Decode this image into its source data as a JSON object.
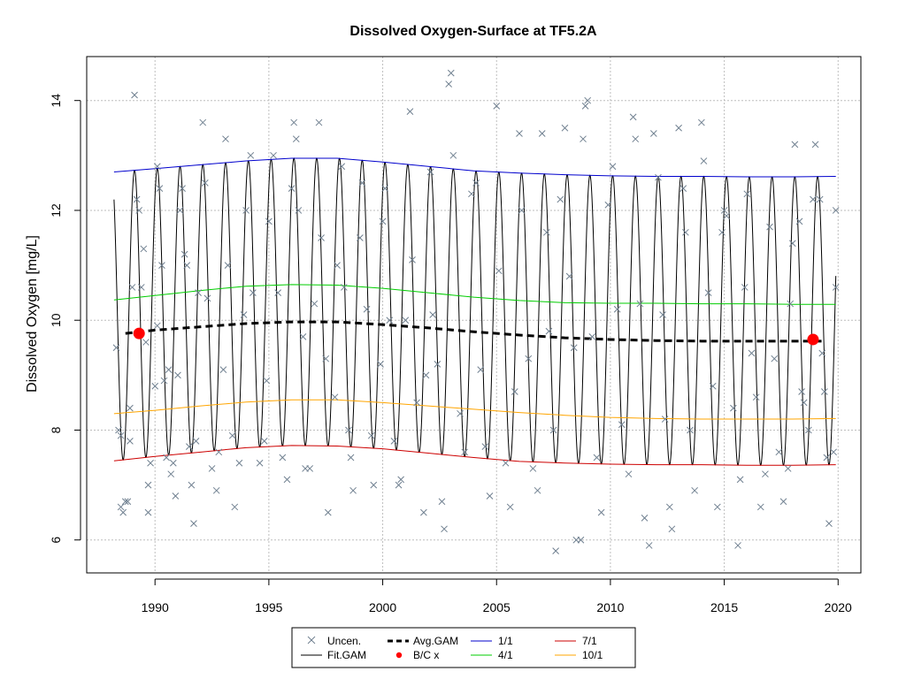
{
  "chart_data": {
    "type": "line",
    "title": "Dissolved Oxygen-Surface at TF5.2A",
    "xlabel": "",
    "ylabel": "Dissolved Oxygen [mg/L]",
    "xlim": [
      1987.0,
      2021.0
    ],
    "ylim": [
      5.4,
      14.8
    ],
    "x_ticks": [
      1990,
      1995,
      2000,
      2005,
      2010,
      2015,
      2020
    ],
    "y_ticks": [
      6,
      8,
      10,
      12,
      14
    ],
    "grid": true,
    "legend_position": "bottom-center",
    "legend": {
      "uncen": "Uncen.",
      "fit": "Fit.GAM",
      "avg": "Avg.GAM",
      "bc": "B/C x",
      "d11": "1/1",
      "d41": "4/1",
      "d71": "7/1",
      "d101": "10/1"
    },
    "colors": {
      "uncen": "#708090",
      "fit": "#000000",
      "avg": "#000000",
      "bc": "#ff0000",
      "d11": "#0000cd",
      "d41": "#00cd00",
      "d71": "#cd0000",
      "d101": "#ffa500",
      "grid": "#bebebe"
    },
    "fit_gam": {
      "x_start": 1988.2,
      "x_end": 2019.9,
      "peak_time_of_year": 0.1,
      "low_time_of_year": 0.6
    },
    "series": [
      {
        "key": "d11",
        "x": [
          1988.2,
          1990,
          1992,
          1994,
          1996,
          1998,
          2000,
          2002,
          2004,
          2006,
          2008,
          2010,
          2012,
          2014,
          2016,
          2018,
          2019.9
        ],
        "values": [
          12.7,
          12.76,
          12.83,
          12.9,
          12.95,
          12.95,
          12.88,
          12.8,
          12.72,
          12.68,
          12.65,
          12.63,
          12.62,
          12.62,
          12.61,
          12.61,
          12.62
        ]
      },
      {
        "key": "d41",
        "x": [
          1988.2,
          1990,
          1992,
          1994,
          1996,
          1998,
          2000,
          2002,
          2004,
          2006,
          2008,
          2010,
          2012,
          2014,
          2016,
          2018,
          2019.9
        ],
        "values": [
          10.37,
          10.45,
          10.54,
          10.62,
          10.65,
          10.64,
          10.58,
          10.5,
          10.42,
          10.36,
          10.32,
          10.31,
          10.31,
          10.3,
          10.3,
          10.29,
          10.29
        ]
      },
      {
        "key": "d101",
        "x": [
          1988.2,
          1990,
          1992,
          1994,
          1996,
          1998,
          2000,
          2002,
          2004,
          2006,
          2008,
          2010,
          2012,
          2014,
          2016,
          2018,
          2019.9
        ],
        "values": [
          8.3,
          8.36,
          8.44,
          8.51,
          8.55,
          8.55,
          8.5,
          8.44,
          8.38,
          8.32,
          8.27,
          8.23,
          8.21,
          8.2,
          8.2,
          8.2,
          8.21
        ]
      },
      {
        "key": "d71",
        "x": [
          1988.2,
          1990,
          1992,
          1994,
          1996,
          1998,
          2000,
          2002,
          2004,
          2006,
          2008,
          2010,
          2012,
          2014,
          2016,
          2018,
          2019.9
        ],
        "values": [
          7.44,
          7.52,
          7.6,
          7.68,
          7.72,
          7.71,
          7.66,
          7.58,
          7.5,
          7.43,
          7.4,
          7.38,
          7.37,
          7.37,
          7.36,
          7.36,
          7.37
        ]
      },
      {
        "key": "avg",
        "x": [
          1988.7,
          1990,
          1992,
          1994,
          1996,
          1998,
          2000,
          2002,
          2004,
          2006,
          2008,
          2010,
          2012,
          2014,
          2016,
          2018,
          2019.4
        ],
        "values": [
          9.76,
          9.82,
          9.88,
          9.94,
          9.97,
          9.97,
          9.92,
          9.86,
          9.79,
          9.73,
          9.68,
          9.65,
          9.63,
          9.62,
          9.62,
          9.62,
          9.62
        ]
      }
    ],
    "bc_points": [
      {
        "x": 1989.3,
        "y": 9.76
      },
      {
        "x": 2018.9,
        "y": 9.65
      }
    ],
    "uncen_points": [
      [
        1988.3,
        9.5
      ],
      [
        1988.4,
        8.0
      ],
      [
        1988.5,
        7.9
      ],
      [
        1988.5,
        6.6
      ],
      [
        1988.6,
        6.5
      ],
      [
        1988.7,
        6.7
      ],
      [
        1988.8,
        6.7
      ],
      [
        1988.9,
        7.8
      ],
      [
        1988.9,
        8.4
      ],
      [
        1989.0,
        10.6
      ],
      [
        1989.1,
        14.1
      ],
      [
        1989.2,
        12.2
      ],
      [
        1989.3,
        12.0
      ],
      [
        1989.4,
        10.6
      ],
      [
        1989.5,
        11.3
      ],
      [
        1989.6,
        9.6
      ],
      [
        1989.7,
        7.0
      ],
      [
        1989.7,
        6.5
      ],
      [
        1989.8,
        7.4
      ],
      [
        1990.0,
        8.8
      ],
      [
        1990.1,
        9.9
      ],
      [
        1990.1,
        12.8
      ],
      [
        1990.2,
        12.4
      ],
      [
        1990.3,
        11.0
      ],
      [
        1990.4,
        8.9
      ],
      [
        1990.5,
        7.5
      ],
      [
        1990.6,
        9.1
      ],
      [
        1990.7,
        7.2
      ],
      [
        1990.8,
        7.4
      ],
      [
        1990.9,
        6.8
      ],
      [
        1991.0,
        9.0
      ],
      [
        1991.1,
        12.0
      ],
      [
        1991.2,
        12.4
      ],
      [
        1991.3,
        11.2
      ],
      [
        1991.4,
        11.0
      ],
      [
        1991.5,
        7.7
      ],
      [
        1991.6,
        7.0
      ],
      [
        1991.7,
        6.3
      ],
      [
        1991.8,
        7.8
      ],
      [
        1991.9,
        10.5
      ],
      [
        1992.1,
        13.6
      ],
      [
        1992.2,
        12.5
      ],
      [
        1992.3,
        10.4
      ],
      [
        1992.5,
        7.3
      ],
      [
        1992.7,
        6.9
      ],
      [
        1992.8,
        7.6
      ],
      [
        1993.0,
        9.1
      ],
      [
        1993.1,
        13.3
      ],
      [
        1993.2,
        11.0
      ],
      [
        1993.4,
        7.9
      ],
      [
        1993.5,
        6.6
      ],
      [
        1993.7,
        7.4
      ],
      [
        1993.9,
        10.1
      ],
      [
        1994.0,
        12.0
      ],
      [
        1994.2,
        13.0
      ],
      [
        1994.3,
        10.5
      ],
      [
        1994.6,
        7.4
      ],
      [
        1994.8,
        7.8
      ],
      [
        1994.9,
        8.9
      ],
      [
        1995.0,
        11.8
      ],
      [
        1995.2,
        13.0
      ],
      [
        1995.4,
        10.5
      ],
      [
        1995.6,
        7.5
      ],
      [
        1995.8,
        7.1
      ],
      [
        1996.0,
        12.4
      ],
      [
        1996.1,
        13.6
      ],
      [
        1996.2,
        13.3
      ],
      [
        1996.3,
        12.0
      ],
      [
        1996.5,
        9.7
      ],
      [
        1996.6,
        7.3
      ],
      [
        1996.8,
        7.3
      ],
      [
        1997.0,
        10.3
      ],
      [
        1997.2,
        13.6
      ],
      [
        1997.3,
        11.5
      ],
      [
        1997.5,
        9.3
      ],
      [
        1997.6,
        6.5
      ],
      [
        1997.9,
        8.6
      ],
      [
        1998.0,
        11.0
      ],
      [
        1998.2,
        12.8
      ],
      [
        1998.3,
        10.6
      ],
      [
        1998.5,
        8.0
      ],
      [
        1998.6,
        7.5
      ],
      [
        1998.7,
        6.9
      ],
      [
        1999.0,
        11.5
      ],
      [
        1999.1,
        12.5
      ],
      [
        1999.3,
        10.2
      ],
      [
        1999.5,
        7.9
      ],
      [
        1999.6,
        7.0
      ],
      [
        1999.9,
        9.2
      ],
      [
        2000.0,
        11.8
      ],
      [
        2000.1,
        12.4
      ],
      [
        2000.3,
        10.0
      ],
      [
        2000.5,
        7.8
      ],
      [
        2000.7,
        7.0
      ],
      [
        2000.8,
        7.1
      ],
      [
        2001.0,
        10.0
      ],
      [
        2001.2,
        13.8
      ],
      [
        2001.3,
        11.1
      ],
      [
        2001.5,
        8.5
      ],
      [
        2001.8,
        6.5
      ],
      [
        2001.9,
        9.0
      ],
      [
        2002.1,
        12.7
      ],
      [
        2002.2,
        10.1
      ],
      [
        2002.4,
        9.2
      ],
      [
        2002.6,
        6.7
      ],
      [
        2002.7,
        6.2
      ],
      [
        2002.9,
        14.3
      ],
      [
        2003.0,
        14.5
      ],
      [
        2003.1,
        13.0
      ],
      [
        2003.4,
        8.3
      ],
      [
        2003.6,
        7.6
      ],
      [
        2003.9,
        12.3
      ],
      [
        2004.1,
        12.5
      ],
      [
        2004.3,
        9.1
      ],
      [
        2004.5,
        7.7
      ],
      [
        2004.7,
        6.8
      ],
      [
        2005.0,
        13.9
      ],
      [
        2005.1,
        10.9
      ],
      [
        2005.4,
        7.4
      ],
      [
        2005.6,
        6.6
      ],
      [
        2005.8,
        8.7
      ],
      [
        2006.0,
        13.4
      ],
      [
        2006.1,
        12.0
      ],
      [
        2006.4,
        9.3
      ],
      [
        2006.6,
        7.3
      ],
      [
        2006.8,
        6.9
      ],
      [
        2007.0,
        13.4
      ],
      [
        2007.2,
        11.6
      ],
      [
        2007.3,
        9.8
      ],
      [
        2007.5,
        8.0
      ],
      [
        2007.6,
        5.8
      ],
      [
        2007.8,
        12.2
      ],
      [
        2008.0,
        13.5
      ],
      [
        2008.2,
        10.8
      ],
      [
        2008.4,
        9.5
      ],
      [
        2008.5,
        6.0
      ],
      [
        2008.7,
        6.0
      ],
      [
        2008.8,
        13.3
      ],
      [
        2008.9,
        13.9
      ],
      [
        2009.0,
        14.0
      ],
      [
        2009.2,
        9.7
      ],
      [
        2009.4,
        7.5
      ],
      [
        2009.6,
        6.5
      ],
      [
        2009.9,
        12.1
      ],
      [
        2010.1,
        12.8
      ],
      [
        2010.3,
        10.2
      ],
      [
        2010.5,
        8.1
      ],
      [
        2010.8,
        7.2
      ],
      [
        2011.0,
        13.7
      ],
      [
        2011.1,
        13.3
      ],
      [
        2011.3,
        10.3
      ],
      [
        2011.5,
        6.4
      ],
      [
        2011.7,
        5.9
      ],
      [
        2011.9,
        13.4
      ],
      [
        2012.1,
        12.6
      ],
      [
        2012.3,
        10.1
      ],
      [
        2012.4,
        8.2
      ],
      [
        2012.6,
        6.6
      ],
      [
        2012.7,
        6.2
      ],
      [
        2013.0,
        13.5
      ],
      [
        2013.2,
        12.4
      ],
      [
        2013.3,
        11.6
      ],
      [
        2013.5,
        8.0
      ],
      [
        2013.7,
        6.9
      ],
      [
        2014.0,
        13.6
      ],
      [
        2014.1,
        12.9
      ],
      [
        2014.3,
        10.5
      ],
      [
        2014.5,
        8.8
      ],
      [
        2014.7,
        6.6
      ],
      [
        2014.9,
        11.6
      ],
      [
        2015.0,
        12.0
      ],
      [
        2015.1,
        11.9
      ],
      [
        2015.4,
        8.4
      ],
      [
        2015.6,
        5.9
      ],
      [
        2015.7,
        7.1
      ],
      [
        2015.9,
        10.6
      ],
      [
        2016.0,
        12.3
      ],
      [
        2016.2,
        9.4
      ],
      [
        2016.4,
        8.6
      ],
      [
        2016.6,
        6.6
      ],
      [
        2016.8,
        7.2
      ],
      [
        2017.0,
        11.7
      ],
      [
        2017.2,
        9.3
      ],
      [
        2017.4,
        7.6
      ],
      [
        2017.6,
        6.7
      ],
      [
        2017.8,
        7.3
      ],
      [
        2017.9,
        10.3
      ],
      [
        2018.0,
        11.4
      ],
      [
        2018.1,
        13.2
      ],
      [
        2018.3,
        11.8
      ],
      [
        2018.4,
        8.7
      ],
      [
        2018.5,
        8.5
      ],
      [
        2018.7,
        8.0
      ],
      [
        2018.9,
        12.2
      ],
      [
        2019.0,
        13.2
      ],
      [
        2019.2,
        12.2
      ],
      [
        2019.3,
        9.4
      ],
      [
        2019.4,
        8.7
      ],
      [
        2019.5,
        7.5
      ],
      [
        2019.6,
        6.3
      ],
      [
        2019.8,
        7.6
      ],
      [
        2019.9,
        12.0
      ],
      [
        2019.9,
        10.6
      ]
    ]
  }
}
